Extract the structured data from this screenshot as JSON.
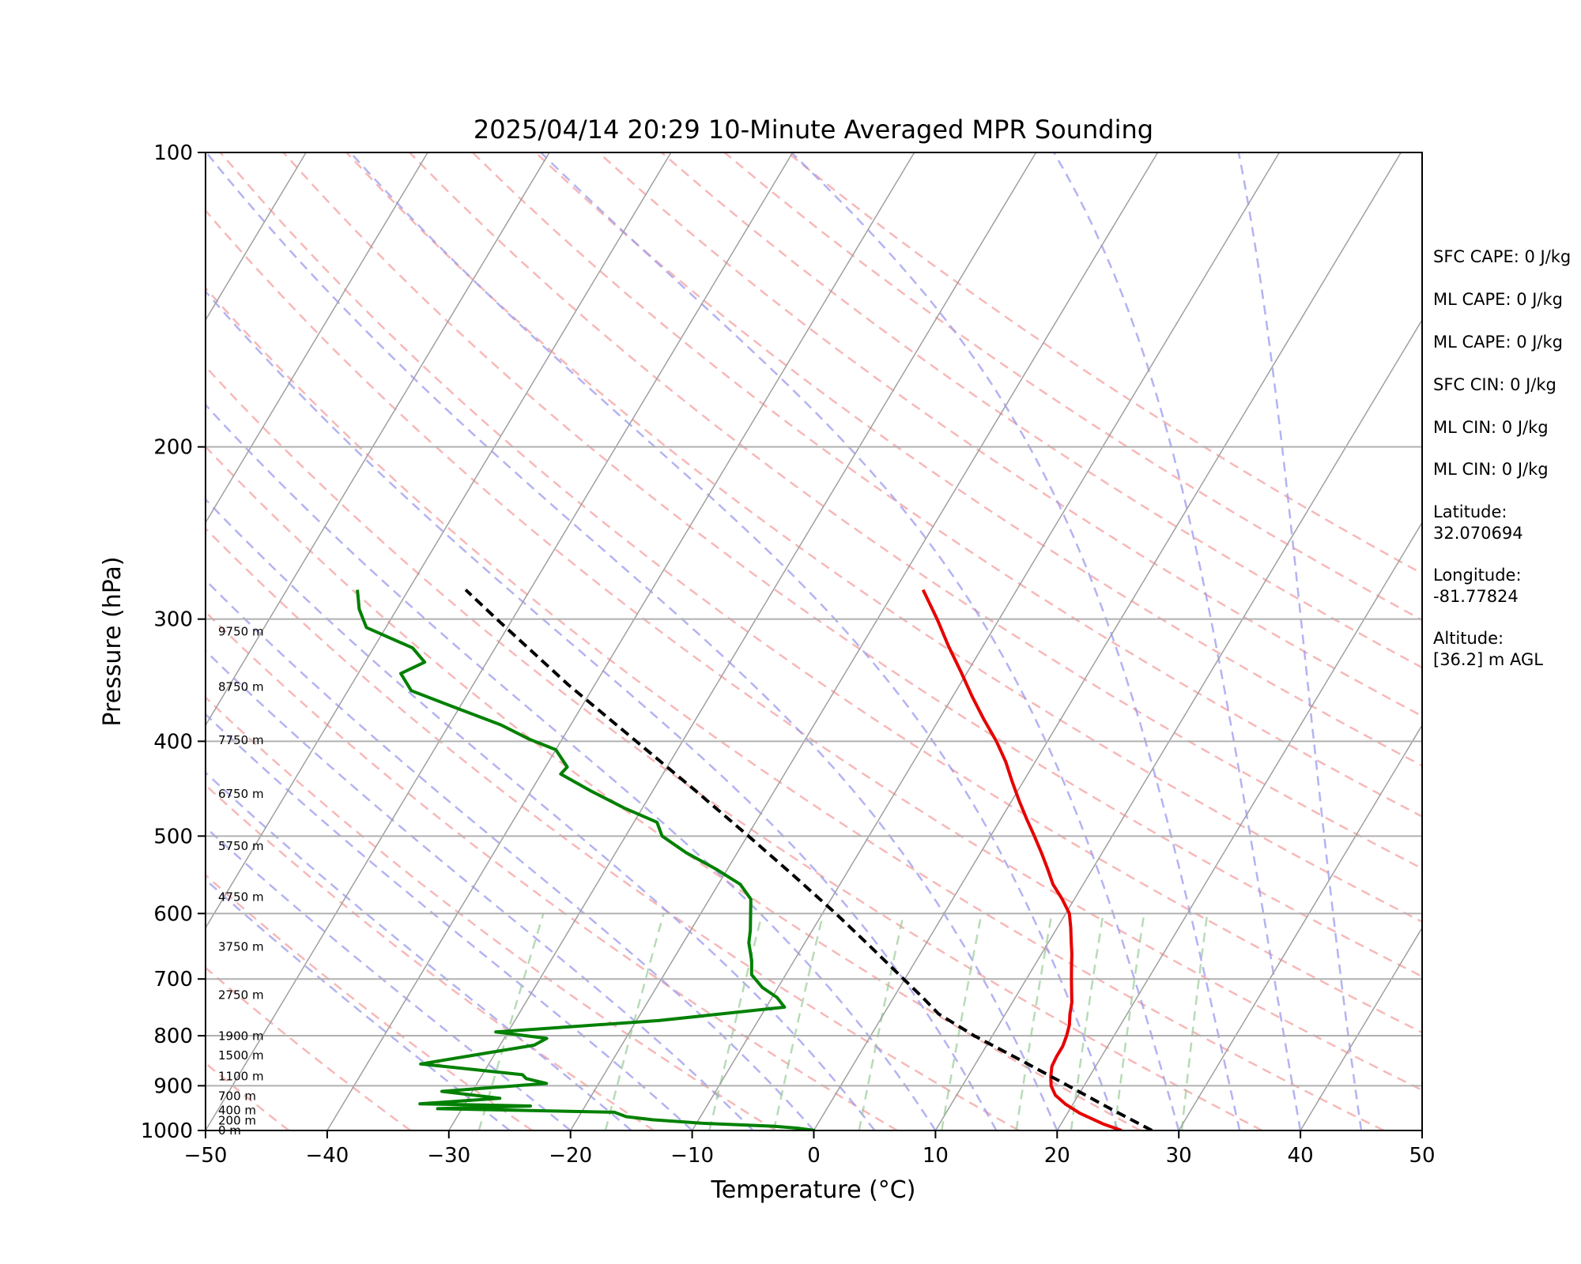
{
  "chart_data": {
    "type": "line",
    "subtype": "skew-T log-P diagram",
    "title": "2025/04/14 20:29 10-Minute Averaged MPR Sounding",
    "xlabel": "Temperature (°C)",
    "ylabel": "Pressure (hPa)",
    "xlim": [
      -50,
      50
    ],
    "ylim": [
      1000,
      100
    ],
    "y_scale": "log",
    "x_ticks": [
      "−50",
      "−40",
      "−30",
      "−20",
      "−10",
      "0",
      "10",
      "20",
      "30",
      "40",
      "50"
    ],
    "y_ticks": [
      "100",
      "200",
      "300",
      "400",
      "500",
      "600",
      "700",
      "800",
      "900",
      "1000"
    ],
    "grid": "horizontal pressure lines",
    "background_lines": {
      "isotherms_color": "#a0a0a0",
      "dry_adiabats_color": "#f4a0a0",
      "moist_adiabats_color": "#9999ee",
      "mixing_ratio_color": "#99cc99"
    },
    "series": [
      {
        "role": "temperature",
        "color": "#e60000",
        "points": [
          [
            1000,
            25.3
          ],
          [
            985,
            23.5
          ],
          [
            960,
            21.0
          ],
          [
            940,
            19.4
          ],
          [
            920,
            18.1
          ],
          [
            900,
            17.3
          ],
          [
            880,
            16.8
          ],
          [
            860,
            16.4
          ],
          [
            840,
            16.3
          ],
          [
            820,
            16.3
          ],
          [
            800,
            16.1
          ],
          [
            780,
            15.8
          ],
          [
            760,
            15.3
          ],
          [
            740,
            14.9
          ],
          [
            720,
            14.3
          ],
          [
            700,
            13.7
          ],
          [
            680,
            13.1
          ],
          [
            660,
            12.5
          ],
          [
            640,
            11.8
          ],
          [
            620,
            11.1
          ],
          [
            600,
            10.3
          ],
          [
            580,
            9.0
          ],
          [
            560,
            7.5
          ],
          [
            540,
            6.3
          ],
          [
            520,
            5.0
          ],
          [
            500,
            3.6
          ],
          [
            480,
            2.1
          ],
          [
            460,
            0.6
          ],
          [
            440,
            -0.9
          ],
          [
            420,
            -2.4
          ],
          [
            400,
            -4.2
          ],
          [
            380,
            -6.3
          ],
          [
            360,
            -8.4
          ],
          [
            340,
            -10.5
          ],
          [
            320,
            -12.8
          ],
          [
            300,
            -15.1
          ],
          [
            280,
            -17.7
          ]
        ]
      },
      {
        "role": "dewpoint",
        "color": "#008000",
        "points": [
          [
            1000,
            0.1
          ],
          [
            995,
            -1.3
          ],
          [
            990,
            -3.5
          ],
          [
            983,
            -9.6
          ],
          [
            975,
            -13.8
          ],
          [
            968,
            -16.1
          ],
          [
            958,
            -17.3
          ],
          [
            950,
            -32.0
          ],
          [
            944,
            -24.5
          ],
          [
            939,
            -33.7
          ],
          [
            927,
            -27.4
          ],
          [
            912,
            -32.5
          ],
          [
            895,
            -24.3
          ],
          [
            885,
            -26.2
          ],
          [
            877,
            -26.7
          ],
          [
            855,
            -35.6
          ],
          [
            818,
            -27.2
          ],
          [
            805,
            -26.5
          ],
          [
            793,
            -31.0
          ],
          [
            772,
            -18.2
          ],
          [
            748,
            -8.5
          ],
          [
            731,
            -9.6
          ],
          [
            714,
            -11.3
          ],
          [
            693,
            -12.8
          ],
          [
            670,
            -13.5
          ],
          [
            643,
            -14.6
          ],
          [
            624,
            -15.1
          ],
          [
            603,
            -15.8
          ],
          [
            580,
            -16.6
          ],
          [
            560,
            -18.2
          ],
          [
            540,
            -21.0
          ],
          [
            520,
            -24.2
          ],
          [
            500,
            -27.0
          ],
          [
            484,
            -28.1
          ],
          [
            468,
            -31.5
          ],
          [
            450,
            -35.0
          ],
          [
            432,
            -38.4
          ],
          [
            425,
            -38.2
          ],
          [
            408,
            -40.0
          ],
          [
            398,
            -42.7
          ],
          [
            385,
            -45.7
          ],
          [
            370,
            -50.2
          ],
          [
            355,
            -54.8
          ],
          [
            341,
            -56.5
          ],
          [
            332,
            -55.1
          ],
          [
            321,
            -56.8
          ],
          [
            306,
            -61.6
          ],
          [
            293,
            -63.1
          ],
          [
            280,
            -64.2
          ]
        ]
      },
      {
        "role": "parcel path",
        "color": "#000000",
        "style": "dashed",
        "points": [
          [
            1000,
            27.8
          ],
          [
            950,
            23.3
          ],
          [
            900,
            18.7
          ],
          [
            850,
            13.8
          ],
          [
            800,
            8.5
          ],
          [
            760,
            4.5
          ],
          [
            730,
            2.3
          ],
          [
            700,
            -0.1
          ],
          [
            650,
            -4.3
          ],
          [
            600,
            -8.9
          ],
          [
            550,
            -14.1
          ],
          [
            500,
            -19.9
          ],
          [
            450,
            -26.4
          ],
          [
            400,
            -33.8
          ],
          [
            350,
            -42.2
          ],
          [
            300,
            -51.3
          ],
          [
            280,
            -55.3
          ]
        ]
      }
    ],
    "height_labels": [
      {
        "label": "0 m",
        "pressure": 1000
      },
      {
        "label": "200 m",
        "pressure": 977
      },
      {
        "label": "400 m",
        "pressure": 954
      },
      {
        "label": "700 m",
        "pressure": 922
      },
      {
        "label": "1100 m",
        "pressure": 880
      },
      {
        "label": "1500 m",
        "pressure": 838
      },
      {
        "label": "1900 m",
        "pressure": 801
      },
      {
        "label": "2750 m",
        "pressure": 727
      },
      {
        "label": "3750 m",
        "pressure": 649
      },
      {
        "label": "4750 m",
        "pressure": 577
      },
      {
        "label": "5750 m",
        "pressure": 512
      },
      {
        "label": "6750 m",
        "pressure": 453
      },
      {
        "label": "7750 m",
        "pressure": 399
      },
      {
        "label": "8750 m",
        "pressure": 352
      },
      {
        "label": "9750 m",
        "pressure": 309
      }
    ]
  },
  "stats": [
    "SFC CAPE: 0 J/kg",
    "ML CAPE: 0 J/kg",
    "ML CAPE: 0 J/kg",
    "SFC CIN: 0 J/kg",
    "ML CIN: 0 J/kg",
    "ML CIN: 0 J/kg",
    "Latitude:\n32.070694",
    "Longitude:\n-81.77824",
    "Altitude:\n[36.2] m AGL"
  ]
}
